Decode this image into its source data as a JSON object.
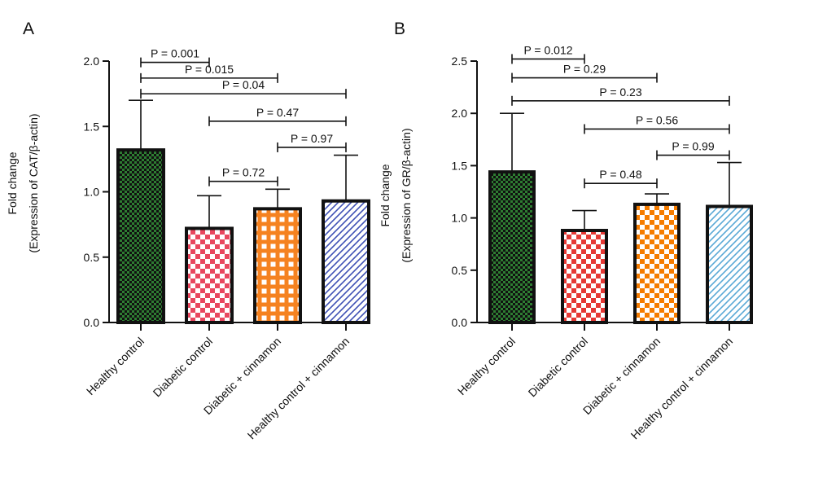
{
  "chart_data": [
    {
      "type": "bar",
      "panel_label": "A",
      "ylabel_line1": "Fold change",
      "ylabel_line2": "(Expression of CAT/β-actin)",
      "ylim": [
        0,
        2.0
      ],
      "yticks": [
        "0.0",
        "0.5",
        "1.0",
        "1.5",
        "2.0"
      ],
      "categories": [
        "Healthy control",
        "Diabetic control",
        "Diabetic + cinnamon",
        "Healthy control + cinnamon"
      ],
      "values": [
        1.32,
        0.72,
        0.87,
        0.93
      ],
      "errors": [
        0.38,
        0.25,
        0.15,
        0.35
      ],
      "colors": [
        "#2e7d32",
        "#e8475f",
        "#f58220",
        "#3f51b5"
      ],
      "patterns": [
        "checker-fine",
        "checker",
        "grid",
        "diagonal"
      ],
      "comparisons": [
        {
          "from": 0,
          "to": 1,
          "label": "P = 0.001",
          "y": 1.99
        },
        {
          "from": 0,
          "to": 2,
          "label": "P = 0.015",
          "y": 1.87
        },
        {
          "from": 0,
          "to": 3,
          "label": "P = 0.04",
          "y": 1.75
        },
        {
          "from": 1,
          "to": 3,
          "label": "P = 0.47",
          "y": 1.54
        },
        {
          "from": 2,
          "to": 3,
          "label": "P = 0.97",
          "y": 1.34
        },
        {
          "from": 1,
          "to": 2,
          "label": "P = 0.72",
          "y": 1.08
        }
      ]
    },
    {
      "type": "bar",
      "panel_label": "B",
      "ylabel_line1": "Fold change",
      "ylabel_line2": "(Expression of GR/β-actin)",
      "ylim": [
        0,
        2.5
      ],
      "yticks": [
        "0.0",
        "0.5",
        "1.0",
        "1.5",
        "2.0",
        "2.5"
      ],
      "categories": [
        "Healthy control",
        "Diabetic control",
        "Diabetic + cinnamon",
        "Healthy control + cinnamon"
      ],
      "values": [
        1.44,
        0.88,
        1.13,
        1.11
      ],
      "errors": [
        0.56,
        0.19,
        0.1,
        0.42
      ],
      "colors": [
        "#2e7d32",
        "#e53935",
        "#f57c00",
        "#5aa9d6"
      ],
      "patterns": [
        "checker-fine",
        "checker",
        "checker",
        "diagonal"
      ],
      "comparisons": [
        {
          "from": 0,
          "to": 1,
          "label": "P = 0.012",
          "y": 2.52
        },
        {
          "from": 0,
          "to": 2,
          "label": "P = 0.29",
          "y": 2.34
        },
        {
          "from": 0,
          "to": 3,
          "label": "P = 0.23",
          "y": 2.12
        },
        {
          "from": 1,
          "to": 3,
          "label": "P = 0.56",
          "y": 1.85
        },
        {
          "from": 2,
          "to": 3,
          "label": "P = 0.99",
          "y": 1.6
        },
        {
          "from": 1,
          "to": 2,
          "label": "P = 0.48",
          "y": 1.33
        }
      ]
    }
  ]
}
